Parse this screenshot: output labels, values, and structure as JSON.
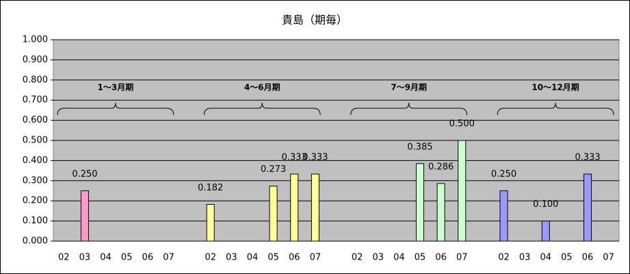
{
  "chart_data": {
    "type": "bar",
    "title": "貴島（期毎）",
    "categories": [
      "02",
      "03",
      "04",
      "05",
      "06",
      "07",
      null,
      "02",
      "03",
      "04",
      "05",
      "06",
      "07",
      null,
      "02",
      "03",
      "04",
      "05",
      "06",
      "07",
      null,
      "02",
      "03",
      "04",
      "05",
      "06",
      "07"
    ],
    "series": [
      {
        "color": "#ff99cc",
        "values": [
          null,
          0.25,
          null,
          null,
          null,
          null,
          null,
          null,
          null,
          null,
          null,
          null,
          null,
          null,
          null,
          null,
          null,
          null,
          null,
          null,
          null,
          null,
          null,
          null,
          null,
          null,
          null
        ],
        "value_labels": [
          null,
          "0.250",
          null,
          null,
          null,
          null,
          null,
          null,
          null,
          null,
          null,
          null,
          null,
          null,
          null,
          null,
          null,
          null,
          null,
          null,
          null,
          null,
          null,
          null,
          null,
          null,
          null
        ]
      },
      {
        "color": "#ffff99",
        "values": [
          null,
          null,
          null,
          null,
          null,
          null,
          null,
          0.182,
          null,
          null,
          0.273,
          0.333,
          0.333,
          null,
          null,
          null,
          null,
          null,
          null,
          null,
          null,
          null,
          null,
          null,
          null,
          null,
          null
        ],
        "value_labels": [
          null,
          null,
          null,
          null,
          null,
          null,
          null,
          "0.182",
          null,
          null,
          "0.273",
          "0.333",
          "0.333",
          null,
          null,
          null,
          null,
          null,
          null,
          null,
          null,
          null,
          null,
          null,
          null,
          null,
          null
        ]
      },
      {
        "color": "#ccffcc",
        "values": [
          null,
          null,
          null,
          null,
          null,
          null,
          null,
          null,
          null,
          null,
          null,
          null,
          null,
          null,
          null,
          null,
          null,
          0.385,
          0.286,
          0.5,
          null,
          null,
          null,
          null,
          null,
          null,
          null
        ],
        "value_labels": [
          null,
          null,
          null,
          null,
          null,
          null,
          null,
          null,
          null,
          null,
          null,
          null,
          null,
          null,
          null,
          null,
          null,
          "0.385",
          "0.286",
          "0.500",
          null,
          null,
          null,
          null,
          null,
          null,
          null
        ]
      },
      {
        "color": "#9999ff",
        "values": [
          null,
          null,
          null,
          null,
          null,
          null,
          null,
          null,
          null,
          null,
          null,
          null,
          null,
          null,
          null,
          null,
          null,
          null,
          null,
          null,
          null,
          0.25,
          null,
          0.1,
          null,
          0.333,
          null
        ],
        "value_labels": [
          null,
          null,
          null,
          null,
          null,
          null,
          null,
          null,
          null,
          null,
          null,
          null,
          null,
          null,
          null,
          null,
          null,
          null,
          null,
          null,
          null,
          "0.250",
          null,
          "0.100",
          null,
          "0.333",
          null
        ]
      }
    ],
    "annotations": [
      "1～3月期",
      "4～6月期",
      "7～9月期",
      "10～12月期"
    ],
    "ylim": [
      0,
      1
    ],
    "yticks": [
      {
        "value": 0,
        "label": "0.000"
      },
      {
        "value": 0.1,
        "label": "0.100"
      },
      {
        "value": 0.2,
        "label": "0.200"
      },
      {
        "value": 0.3,
        "label": "0.300"
      },
      {
        "value": 0.4,
        "label": "0.400"
      },
      {
        "value": 0.5,
        "label": "0.500"
      },
      {
        "value": 0.6,
        "label": "0.600"
      },
      {
        "value": 0.7,
        "label": "0.700"
      },
      {
        "value": 0.8,
        "label": "0.800"
      },
      {
        "value": 0.9,
        "label": "0.900"
      },
      {
        "value": 1,
        "label": "1.000"
      }
    ],
    "grid": true
  }
}
